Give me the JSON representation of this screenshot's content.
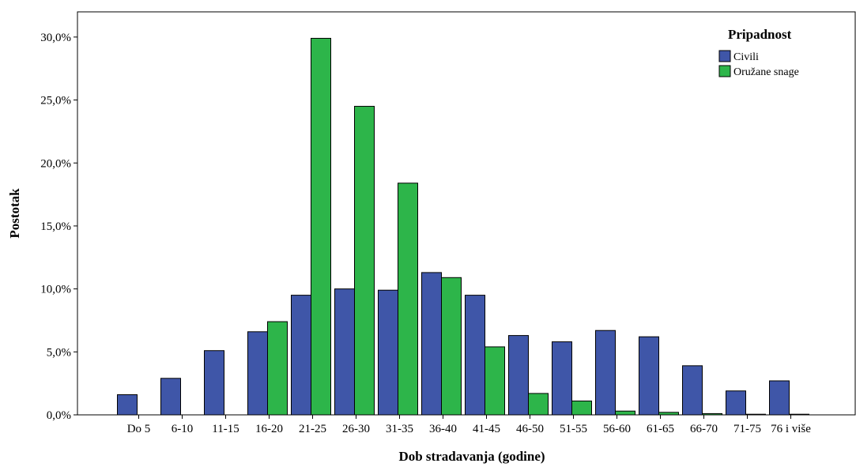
{
  "chart_data": {
    "type": "bar",
    "title": "",
    "xlabel": "Dob stradavanja (godine)",
    "ylabel": "Postotak",
    "ylim": [
      0,
      32
    ],
    "yticks": [
      0,
      5,
      10,
      15,
      20,
      25,
      30
    ],
    "ytick_labels": [
      "0,0%",
      "5,0%",
      "10,0%",
      "15,0%",
      "20,0%",
      "25,0%",
      "30,0%"
    ],
    "categories": [
      "Do 5",
      "6-10",
      "11-15",
      "16-20",
      "21-25",
      "26-30",
      "31-35",
      "36-40",
      "41-45",
      "46-50",
      "51-55",
      "56-60",
      "61-65",
      "66-70",
      "71-75",
      "76 i više"
    ],
    "series": [
      {
        "name": "Civili",
        "color": "#3f56a8",
        "values": [
          1.6,
          2.9,
          5.1,
          6.6,
          9.5,
          10.0,
          9.9,
          11.3,
          9.5,
          6.3,
          5.8,
          6.7,
          6.2,
          3.9,
          1.9,
          2.7
        ]
      },
      {
        "name": "Oružane snage",
        "color": "#2db54a",
        "values": [
          0.0,
          0.0,
          0.0,
          7.4,
          29.9,
          24.5,
          18.4,
          10.9,
          5.4,
          1.7,
          1.1,
          0.3,
          0.2,
          0.1,
          0.05,
          0.05
        ]
      }
    ],
    "legend": {
      "title": "Pripadnost",
      "position": "top-right"
    },
    "grid": false
  }
}
